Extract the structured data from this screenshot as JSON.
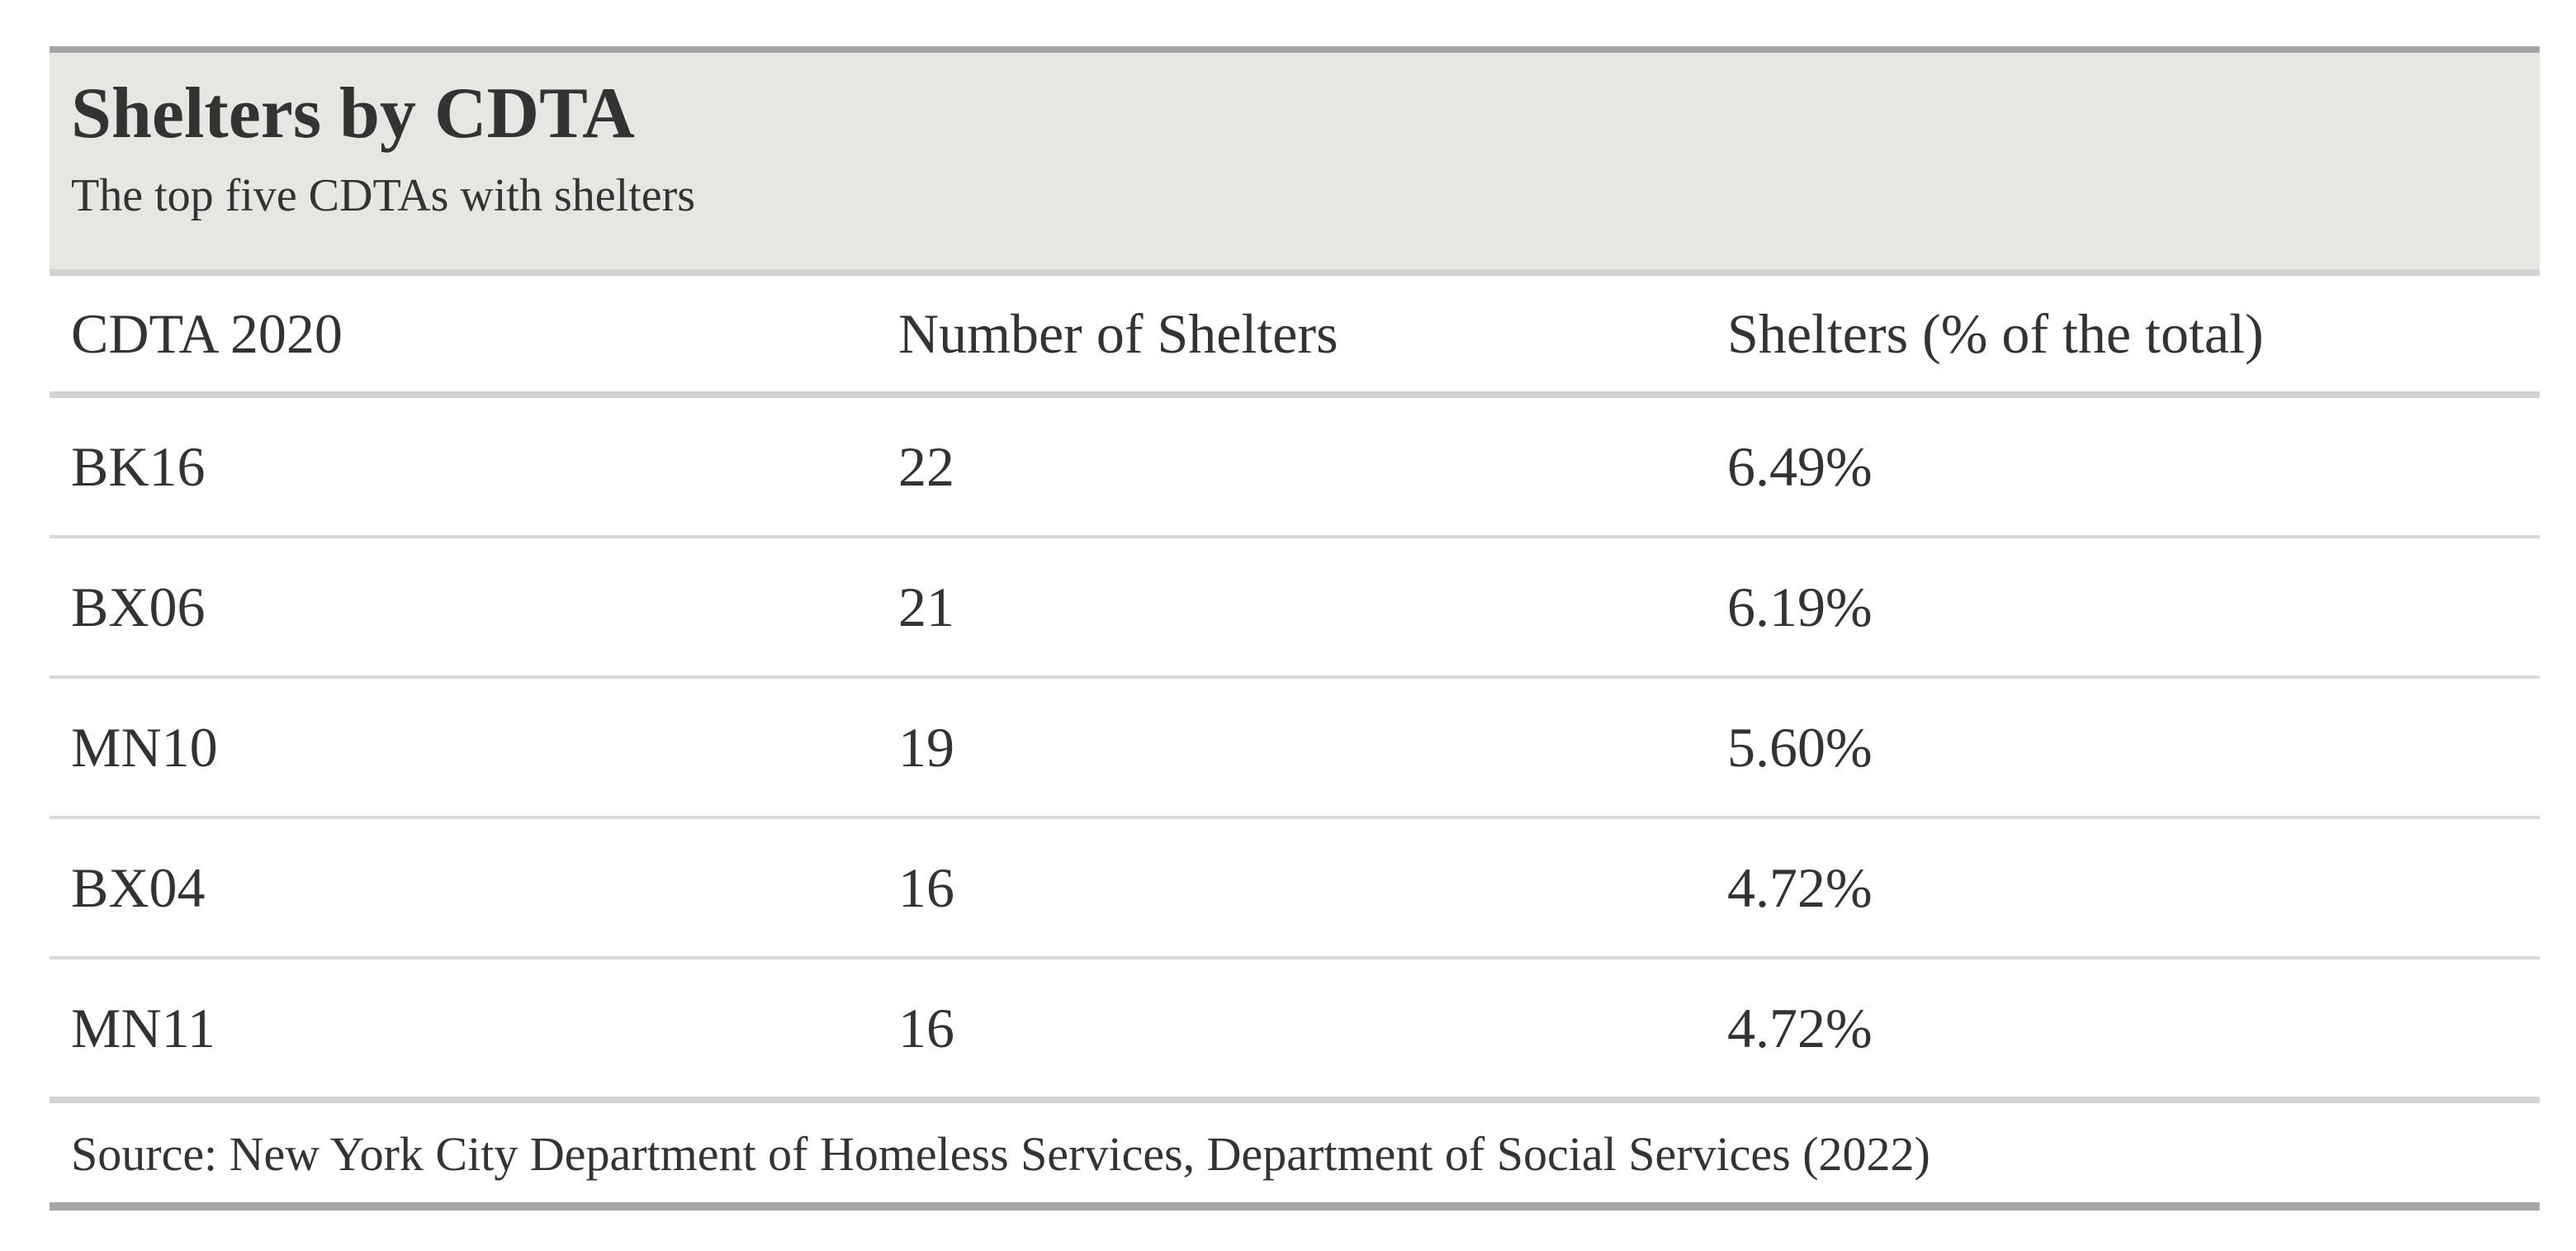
{
  "chart_data": {
    "type": "table",
    "title": "Shelters by CDTA",
    "subtitle": "The top five CDTAs with shelters",
    "columns": [
      "CDTA 2020",
      "Number of Shelters",
      "Shelters (% of the total)"
    ],
    "rows": [
      [
        "BK16",
        "22",
        "6.49%"
      ],
      [
        "BX06",
        "21",
        "6.19%"
      ],
      [
        "MN10",
        "19",
        "5.60%"
      ],
      [
        "BX04",
        "16",
        "4.72%"
      ],
      [
        "MN11",
        "16",
        "4.72%"
      ]
    ],
    "source": "Source: New York City Department of Homeless Services, Department of Social Services (2022)"
  }
}
